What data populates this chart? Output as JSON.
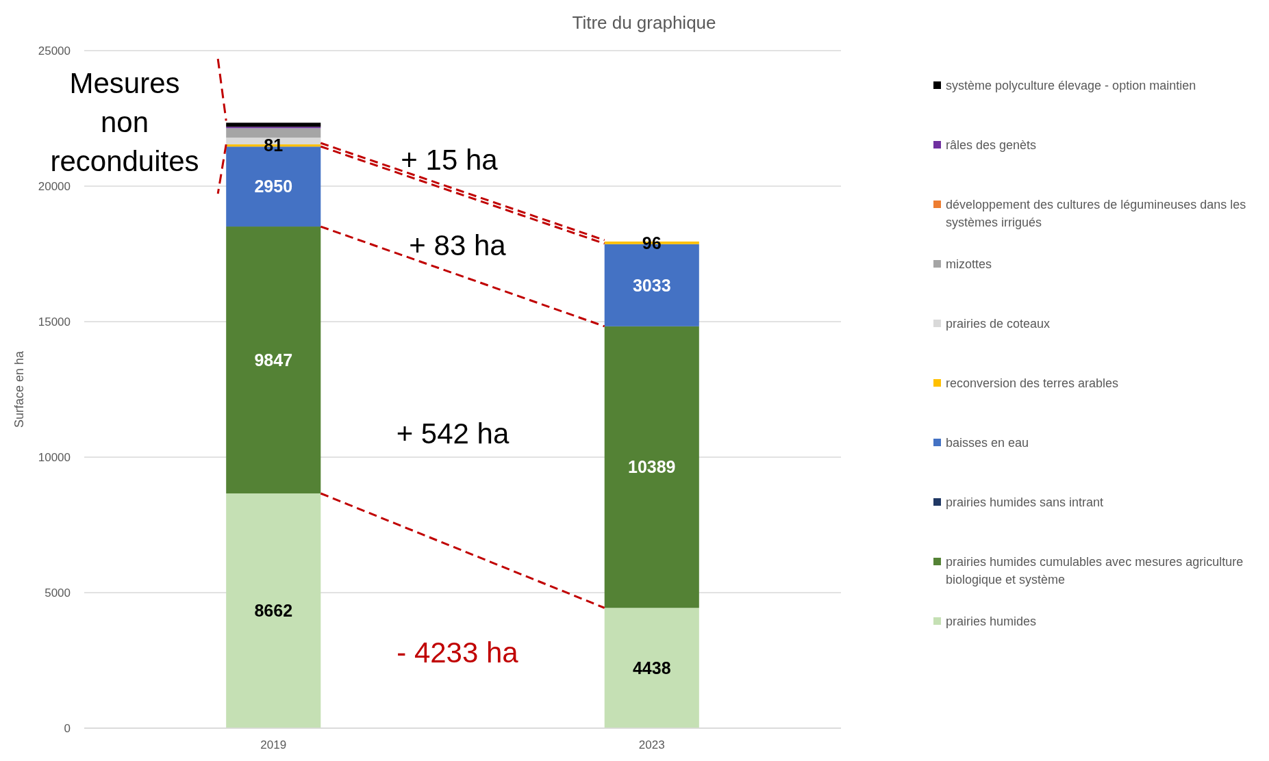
{
  "chart_data": {
    "type": "bar",
    "stacked": true,
    "title": "Titre du graphique",
    "ylabel": "Surface en ha",
    "categories": [
      "2019",
      "2023"
    ],
    "ylim": [
      0,
      25000
    ],
    "yticks": [
      0,
      5000,
      10000,
      15000,
      20000,
      25000
    ],
    "grid": "y",
    "legend": "right",
    "series": [
      {
        "name": "prairies humides",
        "color": "#c5e0b4",
        "values": [
          8662,
          4438
        ],
        "value_labels": [
          "8662",
          "4438"
        ]
      },
      {
        "name": "prairies humides cumulables avec mesures agriculture biologique et système",
        "color": "#548235",
        "values": [
          9847,
          10389
        ],
        "value_labels": [
          "9847",
          "10389"
        ]
      },
      {
        "name": "prairies humides sans intrant",
        "color": "#203864",
        "values": [
          0,
          0
        ]
      },
      {
        "name": "baisses en eau",
        "color": "#4472c4",
        "values": [
          2950,
          3033
        ],
        "value_labels": [
          "2950",
          "3033"
        ]
      },
      {
        "name": "reconversion des terres arables",
        "color": "#ffc000",
        "values": [
          81,
          96
        ],
        "value_labels": [
          "81",
          "96"
        ]
      },
      {
        "name": "prairies de coteaux",
        "color": "#d9d9d9",
        "values": [
          250,
          0
        ]
      },
      {
        "name": "mizottes",
        "color": "#a5a5a5",
        "values": [
          350,
          0
        ]
      },
      {
        "name": "développement des cultures de légumineuses dans les systèmes irrigués",
        "color": "#ed7d31",
        "values": [
          0,
          0
        ]
      },
      {
        "name": "râles des genèts",
        "color": "#7030a0",
        "values": [
          50,
          0
        ]
      },
      {
        "name": "système polyculture élevage - option maintien",
        "color": "#000000",
        "values": [
          150,
          0
        ]
      }
    ],
    "annotations": [
      "Mesures non reconduites",
      "+ 15 ha",
      "+ 83 ha",
      "+ 542 ha",
      "- 4233 ha"
    ]
  }
}
